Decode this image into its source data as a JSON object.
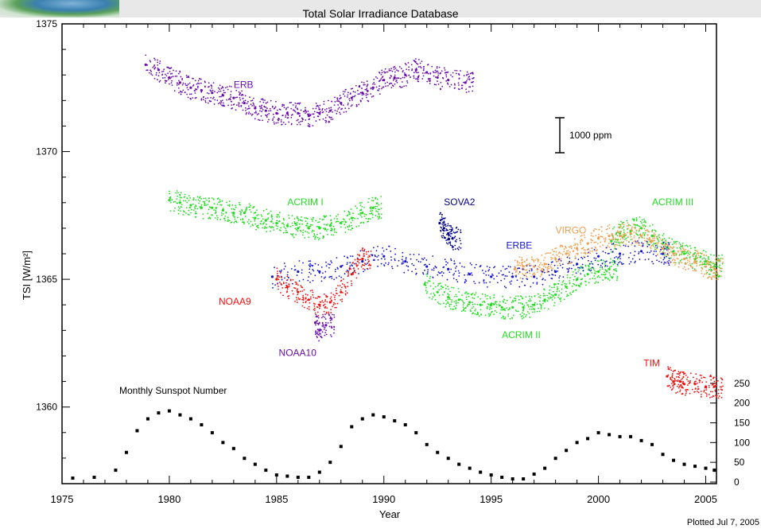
{
  "chart_data": {
    "type": "scatter",
    "title": "Total Solar Irradiance Database",
    "xlabel": "Year",
    "ylabel": "TSI [W/m²]",
    "xlim": [
      1975,
      2005.5
    ],
    "ylim": [
      1357,
      1375
    ],
    "x_ticks": [
      "1975",
      "1980",
      "1985",
      "1990",
      "1995",
      "2000",
      "2005"
    ],
    "y_ticks": [
      "1360",
      "1365",
      "1370",
      "1375"
    ],
    "right_axis": {
      "label": "Monthly Sunspot Number",
      "range": [
        0,
        300
      ],
      "ticks": [
        "0",
        "50",
        "100",
        "150",
        "200",
        "250"
      ]
    },
    "scale_bar_label": "1000 ppm",
    "footer": "Plotted Jul  7, 2005",
    "series": [
      {
        "name": "ERB",
        "color": "#6a0dad",
        "x": [
          1978.9,
          1979.5,
          1980.0,
          1980.5,
          1981.0,
          1981.5,
          1982.0,
          1982.5,
          1983.0,
          1983.5,
          1984.0,
          1984.5,
          1985.0,
          1985.5,
          1986.0,
          1986.5,
          1987.0,
          1987.5,
          1988.0,
          1988.5,
          1989.0,
          1989.5,
          1990.0,
          1990.5,
          1991.0,
          1991.5,
          1992.0,
          1992.5,
          1993.0,
          1993.8
        ],
        "y": [
          1373.4,
          1373.2,
          1372.9,
          1372.7,
          1372.5,
          1372.4,
          1372.3,
          1372.2,
          1372.1,
          1371.9,
          1371.7,
          1371.6,
          1371.5,
          1371.5,
          1371.5,
          1371.4,
          1371.5,
          1371.6,
          1371.9,
          1372.1,
          1372.3,
          1372.5,
          1372.8,
          1372.9,
          1373.0,
          1373.2,
          1373.1,
          1372.9,
          1372.8,
          1372.7
        ],
        "label_pos": [
          1983.0,
          1372.5
        ]
      },
      {
        "name": "ACRIM I",
        "color": "#22dd22",
        "x": [
          1980.0,
          1980.5,
          1981.0,
          1981.5,
          1982.0,
          1982.5,
          1983.0,
          1983.5,
          1984.0,
          1984.5,
          1985.0,
          1985.5,
          1986.0,
          1986.5,
          1987.0,
          1987.5,
          1988.0,
          1988.5,
          1989.0,
          1989.5
        ],
        "y": [
          1368.1,
          1368.0,
          1367.9,
          1367.8,
          1367.8,
          1367.7,
          1367.6,
          1367.6,
          1367.4,
          1367.3,
          1367.2,
          1367.1,
          1367.0,
          1367.0,
          1367.0,
          1367.1,
          1367.2,
          1367.4,
          1367.6,
          1367.8
        ],
        "label_pos": [
          1985.5,
          1367.9
        ]
      },
      {
        "name": "ACRIM II",
        "color": "#22dd22",
        "x": [
          1991.9,
          1992.5,
          1993.0,
          1993.5,
          1994.0,
          1994.5,
          1995.0,
          1995.5,
          1996.0,
          1996.5,
          1997.0,
          1997.5,
          1998.0,
          1998.5,
          1999.0,
          1999.5,
          2000.0,
          2000.5
        ],
        "y": [
          1364.8,
          1364.5,
          1364.3,
          1364.2,
          1364.1,
          1364.0,
          1364.0,
          1363.9,
          1363.9,
          1363.9,
          1364.0,
          1364.2,
          1364.4,
          1364.7,
          1365.0,
          1365.2,
          1365.3,
          1365.4
        ],
        "label_pos": [
          1995.5,
          1362.7
        ]
      },
      {
        "name": "ACRIM III",
        "color": "#22dd22",
        "x": [
          2000.6,
          2001.0,
          2001.5,
          2002.0,
          2002.5,
          2003.0,
          2003.5,
          2004.0,
          2004.5,
          2005.0,
          2005.4
        ],
        "y": [
          1366.5,
          1366.8,
          1366.9,
          1367.0,
          1366.7,
          1366.4,
          1366.1,
          1366.0,
          1365.8,
          1365.7,
          1365.5
        ],
        "label_pos": [
          2002.5,
          1367.9
        ]
      },
      {
        "name": "SOVA2",
        "color": "#00008b",
        "x": [
          1992.6,
          1992.8,
          1993.0,
          1993.2
        ],
        "y": [
          1367.2,
          1367.0,
          1366.8,
          1366.6
        ],
        "label_pos": [
          1992.8,
          1367.9
        ]
      },
      {
        "name": "ERBE",
        "color": "#1515d0",
        "x": [
          1984.8,
          1986.0,
          1987.0,
          1988.0,
          1989.0,
          1990.0,
          1991.0,
          1992.0,
          1993.0,
          1994.0,
          1995.0,
          1996.0,
          1997.0,
          1998.0,
          1999.0,
          2000.0,
          2001.0,
          2002.0,
          2003.0
        ],
        "y": [
          1365.1,
          1365.3,
          1365.3,
          1365.5,
          1365.7,
          1365.9,
          1365.7,
          1365.5,
          1365.4,
          1365.2,
          1365.1,
          1365.1,
          1365.1,
          1365.3,
          1365.6,
          1365.9,
          1366.0,
          1366.1,
          1366.0
        ],
        "label_pos": [
          1995.7,
          1366.2
        ]
      },
      {
        "name": "VIRGO",
        "color": "#f0a050",
        "x": [
          1996.1,
          1996.5,
          1997.0,
          1997.5,
          1998.0,
          1998.5,
          1999.0,
          1999.5,
          2000.0,
          2000.5,
          2001.0,
          2001.5,
          2002.0,
          2002.5,
          2003.0,
          2003.5,
          2004.0,
          2004.5,
          2005.0,
          2005.4
        ],
        "y": [
          1365.4,
          1365.5,
          1365.5,
          1365.6,
          1365.8,
          1366.0,
          1366.2,
          1366.4,
          1366.6,
          1366.7,
          1366.7,
          1366.8,
          1366.7,
          1366.5,
          1366.2,
          1366.0,
          1365.8,
          1365.7,
          1365.5,
          1365.4
        ],
        "label_pos": [
          1998.0,
          1366.8
        ]
      },
      {
        "name": "NOAA9",
        "color": "#ee1111",
        "x": [
          1985.0,
          1985.5,
          1986.0,
          1986.5,
          1987.0,
          1987.5,
          1988.0,
          1988.5,
          1989.0
        ],
        "y": [
          1365.0,
          1364.7,
          1364.5,
          1364.2,
          1364.0,
          1364.1,
          1364.5,
          1365.2,
          1365.8
        ],
        "label_pos": [
          1982.3,
          1364.0
        ]
      },
      {
        "name": "NOAA10",
        "color": "#6a0dad",
        "x": [
          1986.8,
          1987.0,
          1987.3
        ],
        "y": [
          1363.3,
          1363.0,
          1363.2
        ],
        "label_pos": [
          1985.1,
          1362.0
        ]
      },
      {
        "name": "TIM",
        "color": "#ee1111",
        "x": [
          2003.2,
          2003.5,
          2003.8,
          2004.0,
          2004.5,
          2005.0,
          2005.4
        ],
        "y": [
          1361.2,
          1361.0,
          1361.0,
          1360.9,
          1360.9,
          1360.8,
          1360.8
        ],
        "label_pos": [
          2002.1,
          1361.6
        ]
      },
      {
        "name": "Monthly Sunspot Number",
        "color": "#000000",
        "axis": "right",
        "x": [
          1975.5,
          1976.5,
          1977.5,
          1978.0,
          1978.5,
          1979.0,
          1979.5,
          1980.0,
          1980.5,
          1981.0,
          1981.5,
          1982.0,
          1982.5,
          1983.0,
          1983.5,
          1984.0,
          1984.5,
          1985.0,
          1985.5,
          1986.0,
          1986.5,
          1987.0,
          1987.5,
          1988.0,
          1988.5,
          1989.0,
          1989.5,
          1990.0,
          1990.5,
          1991.0,
          1991.5,
          1992.0,
          1992.5,
          1993.0,
          1993.5,
          1994.0,
          1994.5,
          1995.0,
          1995.5,
          1996.0,
          1996.5,
          1997.0,
          1997.5,
          1998.0,
          1998.5,
          1999.0,
          1999.5,
          2000.0,
          2000.5,
          2001.0,
          2001.5,
          2002.0,
          2002.5,
          2003.0,
          2003.5,
          2004.0,
          2004.5,
          2005.0,
          2005.4
        ],
        "y": [
          10,
          12,
          30,
          75,
          130,
          160,
          175,
          180,
          170,
          160,
          145,
          125,
          100,
          85,
          60,
          45,
          30,
          18,
          15,
          12,
          12,
          25,
          50,
          90,
          140,
          160,
          170,
          165,
          155,
          145,
          125,
          95,
          75,
          60,
          45,
          35,
          25,
          18,
          12,
          8,
          8,
          20,
          35,
          60,
          80,
          100,
          110,
          125,
          120,
          115,
          115,
          105,
          95,
          70,
          55,
          45,
          40,
          35,
          30
        ]
      }
    ]
  }
}
